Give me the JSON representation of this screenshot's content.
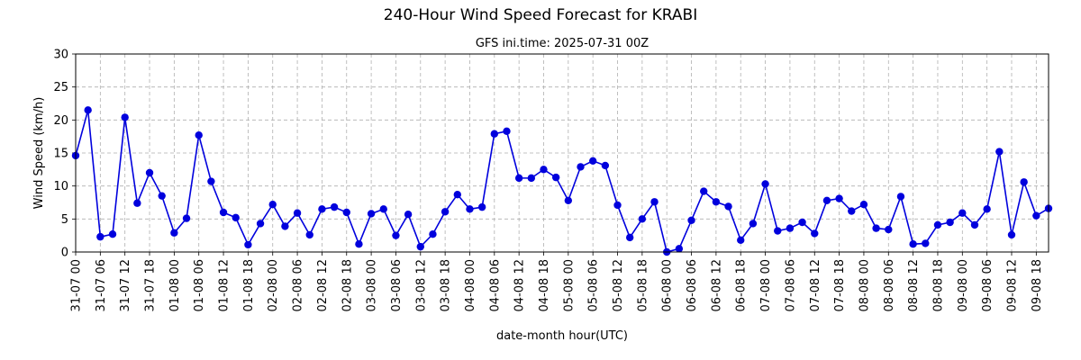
{
  "chart_data": {
    "type": "line",
    "title": "240-Hour Wind Speed Forecast for KRABI",
    "subtitle": "GFS ini.time: 2025-07-31 00Z",
    "xlabel": "date-month hour(UTC)",
    "ylabel": "Wind Speed (km/h)",
    "ylim": [
      0,
      30
    ],
    "yticks": [
      0,
      5,
      10,
      15,
      20,
      25,
      30
    ],
    "grid": true,
    "x_step_hours": 3,
    "xticks": [
      {
        "index": 0,
        "label": "31-07 00"
      },
      {
        "index": 2,
        "label": "31-07 06"
      },
      {
        "index": 4,
        "label": "31-07 12"
      },
      {
        "index": 6,
        "label": "31-07 18"
      },
      {
        "index": 8,
        "label": "01-08 00"
      },
      {
        "index": 10,
        "label": "01-08 06"
      },
      {
        "index": 12,
        "label": "01-08 12"
      },
      {
        "index": 14,
        "label": "01-08 18"
      },
      {
        "index": 16,
        "label": "02-08 00"
      },
      {
        "index": 18,
        "label": "02-08 06"
      },
      {
        "index": 20,
        "label": "02-08 12"
      },
      {
        "index": 22,
        "label": "02-08 18"
      },
      {
        "index": 24,
        "label": "03-08 00"
      },
      {
        "index": 26,
        "label": "03-08 06"
      },
      {
        "index": 28,
        "label": "03-08 12"
      },
      {
        "index": 30,
        "label": "03-08 18"
      },
      {
        "index": 32,
        "label": "04-08 00"
      },
      {
        "index": 34,
        "label": "04-08 06"
      },
      {
        "index": 36,
        "label": "04-08 12"
      },
      {
        "index": 38,
        "label": "04-08 18"
      },
      {
        "index": 40,
        "label": "05-08 00"
      },
      {
        "index": 42,
        "label": "05-08 06"
      },
      {
        "index": 44,
        "label": "05-08 12"
      },
      {
        "index": 46,
        "label": "05-08 18"
      },
      {
        "index": 48,
        "label": "06-08 00"
      },
      {
        "index": 50,
        "label": "06-08 06"
      },
      {
        "index": 52,
        "label": "06-08 12"
      },
      {
        "index": 54,
        "label": "06-08 18"
      },
      {
        "index": 56,
        "label": "07-08 00"
      },
      {
        "index": 58,
        "label": "07-08 06"
      },
      {
        "index": 60,
        "label": "07-08 12"
      },
      {
        "index": 62,
        "label": "07-08 18"
      },
      {
        "index": 64,
        "label": "08-08 00"
      },
      {
        "index": 66,
        "label": "08-08 06"
      },
      {
        "index": 68,
        "label": "08-08 12"
      },
      {
        "index": 70,
        "label": "08-08 18"
      },
      {
        "index": 72,
        "label": "09-08 00"
      },
      {
        "index": 74,
        "label": "09-08 06"
      },
      {
        "index": 76,
        "label": "09-08 12"
      },
      {
        "index": 78,
        "label": "09-08 18"
      }
    ],
    "series": [
      {
        "color": "#0000dd",
        "values": [
          14.6,
          21.5,
          2.3,
          2.7,
          20.4,
          7.4,
          12.0,
          8.5,
          2.9,
          5.1,
          17.7,
          10.7,
          6.0,
          5.2,
          1.1,
          4.3,
          7.2,
          3.9,
          5.9,
          2.6,
          6.5,
          6.8,
          6.0,
          1.2,
          5.8,
          6.5,
          2.5,
          5.7,
          0.8,
          2.7,
          6.1,
          8.7,
          6.5,
          6.8,
          17.9,
          18.3,
          11.2,
          11.2,
          12.5,
          11.3,
          7.8,
          12.9,
          13.8,
          13.1,
          7.1,
          2.2,
          5.0,
          7.6,
          0.0,
          0.5,
          4.8,
          9.2,
          7.6,
          6.9,
          1.8,
          4.3,
          10.3,
          3.2,
          3.6,
          4.5,
          2.8,
          7.8,
          8.1,
          6.2,
          7.2,
          3.6,
          3.4,
          8.4,
          1.2,
          1.3,
          4.1,
          4.5,
          5.9,
          4.1,
          6.5,
          15.2,
          2.6,
          10.6,
          5.5,
          6.6
        ]
      }
    ]
  }
}
